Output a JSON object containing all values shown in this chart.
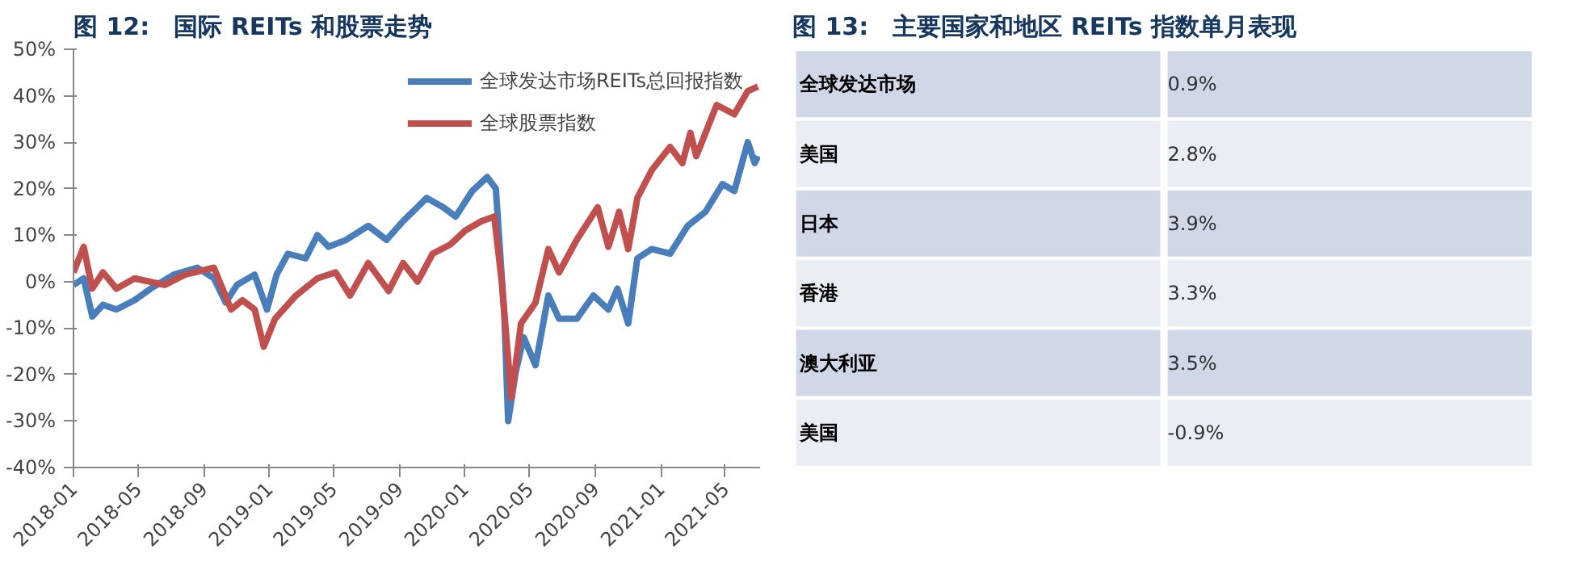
{
  "chart_data": [
    {
      "type": "line",
      "title": "图 12:　国际 REITs 和股票走势",
      "xlim": [
        "2018-01-01",
        "2021-07-05"
      ],
      "xticks": [
        "2018-01",
        "2018-05",
        "2018-09",
        "2019-01",
        "2019-05",
        "2019-09",
        "2020-01",
        "2020-05",
        "2020-09",
        "2021-01",
        "2021-05"
      ],
      "ylim": [
        -40,
        50
      ],
      "yticks": [
        {
          "value": -40,
          "label": "-40%"
        },
        {
          "value": -30,
          "label": "-30%"
        },
        {
          "value": -20,
          "label": "-20%"
        },
        {
          "value": -10,
          "label": "-10%"
        },
        {
          "value": 0,
          "label": "0%"
        },
        {
          "value": 10,
          "label": "10%"
        },
        {
          "value": 20,
          "label": "20%"
        },
        {
          "value": 30,
          "label": "30%"
        },
        {
          "value": 40,
          "label": "40%"
        },
        {
          "value": 50,
          "label": "50%"
        }
      ],
      "grid": false,
      "legend": "top right",
      "marker": "none",
      "line_style": "solid",
      "series": [
        {
          "name": "全球发达市场REITs总回报指数",
          "color": "#4a7ebb",
          "x": [
            "2018-01-01",
            "2018-01-20",
            "2018-02-05",
            "2018-02-25",
            "2018-03-22",
            "2018-04-25",
            "2018-05-25",
            "2018-07-07",
            "2018-08-20",
            "2018-09-20",
            "2018-10-12",
            "2018-11-02",
            "2018-12-05",
            "2018-12-28",
            "2019-01-15",
            "2019-02-05",
            "2019-03-10",
            "2019-04-01",
            "2019-04-22",
            "2019-05-25",
            "2019-07-05",
            "2019-08-08",
            "2019-09-08",
            "2019-10-22",
            "2019-11-22",
            "2019-12-15",
            "2020-01-15",
            "2020-02-12",
            "2020-02-28",
            "2020-03-15",
            "2020-03-22",
            "2020-04-05",
            "2020-04-20",
            "2020-05-12",
            "2020-06-05",
            "2020-06-25",
            "2020-07-28",
            "2020-08-28",
            "2020-09-25",
            "2020-10-12",
            "2020-11-01",
            "2020-11-18",
            "2020-12-15",
            "2021-01-18",
            "2021-02-20",
            "2021-03-25",
            "2021-04-26",
            "2021-05-18",
            "2021-06-12",
            "2021-06-25",
            "2021-07-01"
          ],
          "values": [
            -0.7,
            0.7,
            -7.5,
            -5,
            -6,
            -4,
            -1.5,
            1.5,
            3,
            0.7,
            -4.5,
            -0.7,
            1.5,
            -6,
            1.5,
            6,
            5,
            10,
            7.5,
            9,
            12,
            9,
            13,
            18,
            16,
            14,
            19.5,
            22.5,
            20,
            -7.5,
            -30,
            -19.5,
            -12,
            -18,
            -3,
            -8,
            -8,
            -3,
            -6,
            -1.5,
            -9,
            5,
            7,
            6,
            12,
            15,
            21,
            19.5,
            30,
            25.5,
            27
          ]
        },
        {
          "name": "全球股票指数",
          "color": "#c0504d",
          "x": [
            "2018-01-01",
            "2018-01-20",
            "2018-02-05",
            "2018-02-25",
            "2018-03-22",
            "2018-04-25",
            "2018-06-20",
            "2018-07-28",
            "2018-09-20",
            "2018-10-22",
            "2018-11-12",
            "2018-12-05",
            "2018-12-22",
            "2019-01-12",
            "2019-02-20",
            "2019-04-01",
            "2019-05-05",
            "2019-06-01",
            "2019-07-05",
            "2019-08-12",
            "2019-09-08",
            "2019-10-05",
            "2019-11-02",
            "2019-12-05",
            "2020-01-02",
            "2020-02-01",
            "2020-02-25",
            "2020-03-10",
            "2020-03-28",
            "2020-04-15",
            "2020-05-12",
            "2020-06-05",
            "2020-06-25",
            "2020-07-28",
            "2020-09-05",
            "2020-09-25",
            "2020-10-15",
            "2020-11-01",
            "2020-11-18",
            "2020-12-15",
            "2021-01-18",
            "2021-02-10",
            "2021-02-25",
            "2021-03-08",
            "2021-04-15",
            "2021-05-18",
            "2021-06-12",
            "2021-07-01"
          ],
          "values": [
            2,
            7.5,
            -1.5,
            2,
            -1.5,
            0.7,
            -0.7,
            1.5,
            3,
            -6,
            -4,
            -6,
            -14,
            -8,
            -3,
            0.7,
            2,
            -3,
            4,
            -2,
            4,
            0,
            6,
            8,
            11,
            13,
            14,
            0,
            -25,
            -9,
            -4.5,
            7,
            2,
            9,
            16,
            7.5,
            15,
            7,
            18,
            24,
            29,
            25.5,
            32,
            27,
            38,
            36,
            41,
            42
          ]
        }
      ]
    },
    {
      "type": "other",
      "title": "图 13:　主要国家和地区 REITs 指数单月表现",
      "categories": [
        "全球发达市场",
        "美国",
        "日本",
        "香港",
        "澳大利亚",
        "美国"
      ],
      "value_labels": [
        "0.9%",
        "2.8%",
        "3.9%",
        "3.3%",
        "3.5%",
        "-0.9%"
      ],
      "colors": [
        "#d0d8e8",
        "#e9edf4",
        "#d0d8e8",
        "#e9edf4",
        "#d0d8e8",
        "#e9edf4"
      ]
    }
  ]
}
